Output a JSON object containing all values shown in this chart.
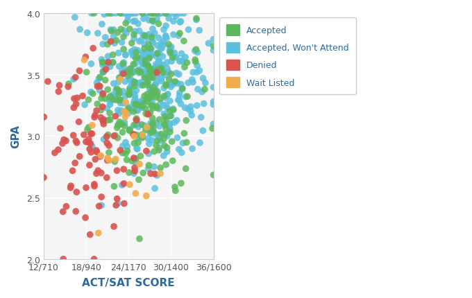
{
  "title": "",
  "xlabel": "ACT/SAT SCORE",
  "ylabel": "GPA",
  "xlim": [
    12,
    36
  ],
  "ylim": [
    2.0,
    4.0
  ],
  "xtick_positions": [
    12,
    18,
    24,
    30,
    36
  ],
  "xtick_labels": [
    "12/710",
    "18/940",
    "24/1170",
    "30/1400",
    "36/1600"
  ],
  "ytick_positions": [
    2.0,
    2.5,
    3.0,
    3.5,
    4.0
  ],
  "colors": {
    "Accepted": "#5cb85c",
    "Accepted, Won't Attend": "#5bc0de",
    "Denied": "#d9534f",
    "Wait Listed": "#f0ad4e"
  },
  "legend_labels": [
    "Accepted",
    "Accepted, Won't Attend",
    "Denied",
    "Wait Listed"
  ],
  "xlabel_color": "#2d6a9f",
  "ylabel_color": "#2d6a9f",
  "background_color": "#ffffff",
  "plot_bg_color": "#f5f5f5",
  "marker_size": 7,
  "seed": 42,
  "n_accepted": 220,
  "n_accepted_wont": 380,
  "n_denied": 100,
  "n_waitlisted": 20
}
